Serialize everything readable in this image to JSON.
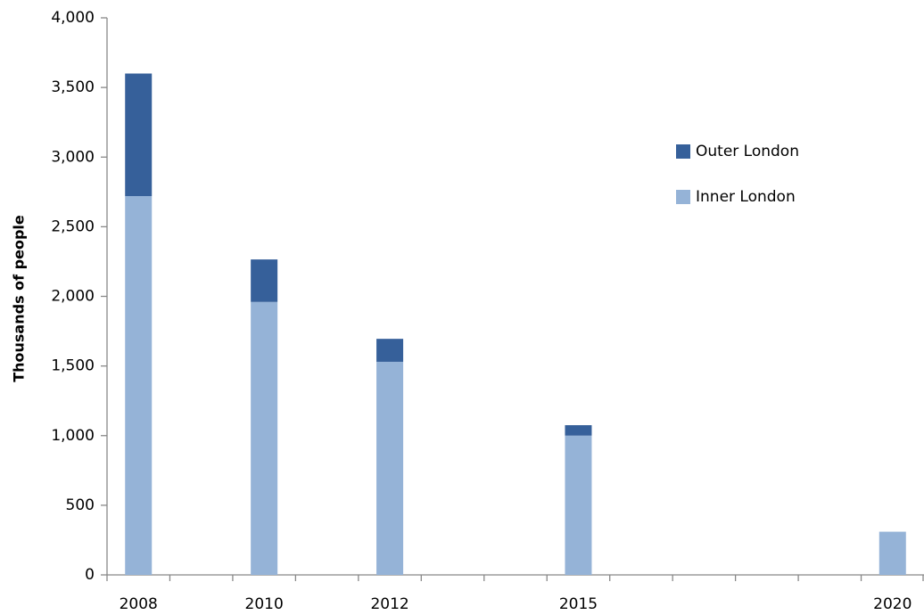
{
  "chart_data": {
    "type": "stacked-bar",
    "y_label": "Thousands of people",
    "categories": [
      "2008",
      null,
      "2010",
      null,
      "2012",
      null,
      null,
      "2015",
      null,
      null,
      null,
      null,
      "2020"
    ],
    "series": [
      {
        "name": "Inner London",
        "color": "#95b3d7",
        "values": [
          2720,
          null,
          1960,
          null,
          1530,
          null,
          null,
          1000,
          null,
          null,
          null,
          null,
          310
        ]
      },
      {
        "name": "Outer London",
        "color": "#36609a",
        "values": [
          880,
          null,
          305,
          null,
          165,
          null,
          null,
          75,
          null,
          null,
          null,
          null,
          null
        ]
      }
    ],
    "ylim": [
      0,
      4000
    ],
    "yticks": [
      {
        "value": 0,
        "label": "0"
      },
      {
        "value": 500,
        "label": "500"
      },
      {
        "value": 1000,
        "label": "1,000"
      },
      {
        "value": 1500,
        "label": "1,500"
      },
      {
        "value": 2000,
        "label": "2,000"
      },
      {
        "value": 2500,
        "label": "2,500"
      },
      {
        "value": 3000,
        "label": "3,000"
      },
      {
        "value": 3500,
        "label": "3,500"
      },
      {
        "value": 4000,
        "label": "4,000"
      }
    ],
    "legend": "upper right"
  }
}
